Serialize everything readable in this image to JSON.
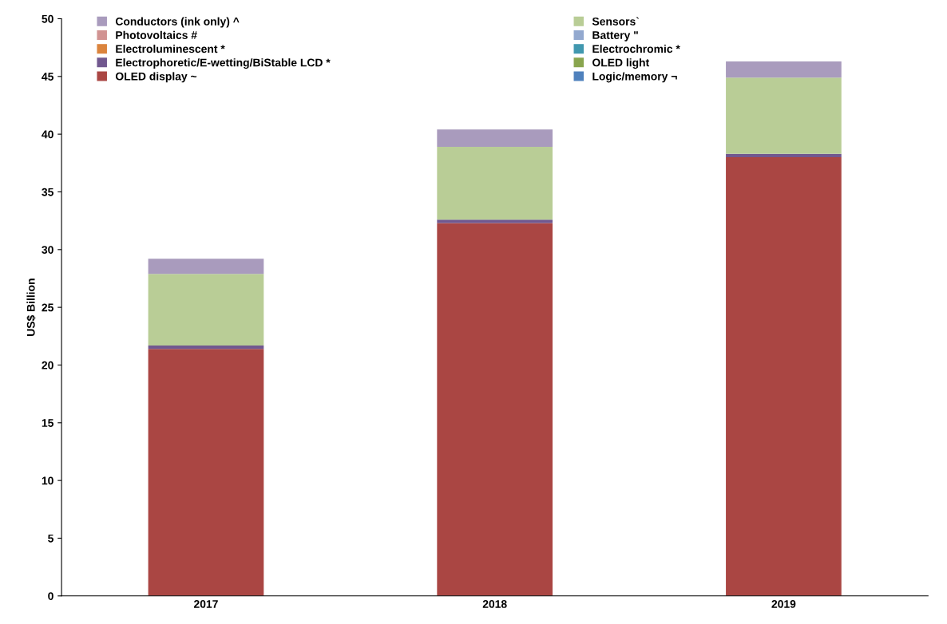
{
  "chart_data": {
    "type": "bar",
    "stacked": true,
    "ylabel": "US$ Billion",
    "categories": [
      "2017",
      "2018",
      "2019"
    ],
    "ylim": [
      0,
      50
    ],
    "yticks": [
      0,
      5,
      10,
      15,
      20,
      25,
      30,
      35,
      40,
      45,
      50
    ],
    "legend": "top",
    "grid": false,
    "series": [
      {
        "name": "Logic/memory ¬",
        "color": "#4f81bd",
        "values": [
          null,
          null,
          null
        ]
      },
      {
        "name": "OLED display ~",
        "color": "#aa4643",
        "values": [
          21.4,
          32.3,
          38.0
        ]
      },
      {
        "name": "OLED light",
        "color": "#89a54e",
        "values": [
          null,
          null,
          null
        ]
      },
      {
        "name": "Electrophoretic/E-wetting/BiStable LCD *",
        "color": "#71588f",
        "values": [
          0.3,
          0.3,
          0.3
        ]
      },
      {
        "name": "Electrochromic *",
        "color": "#4198af",
        "values": [
          null,
          null,
          null
        ]
      },
      {
        "name": "Electroluminescent *",
        "color": "#db843d",
        "values": [
          null,
          null,
          null
        ]
      },
      {
        "name": "Battery \"",
        "color": "#93a9cf",
        "values": [
          null,
          null,
          null
        ]
      },
      {
        "name": "Photovoltaics #",
        "color": "#d19392",
        "values": [
          null,
          null,
          null
        ]
      },
      {
        "name": "Sensors`",
        "color": "#b9cd96",
        "values": [
          6.2,
          6.3,
          6.6
        ]
      },
      {
        "name": "Conductors (ink only) ^",
        "color": "#a99bbd",
        "values": [
          1.3,
          1.5,
          1.4
        ]
      }
    ]
  }
}
